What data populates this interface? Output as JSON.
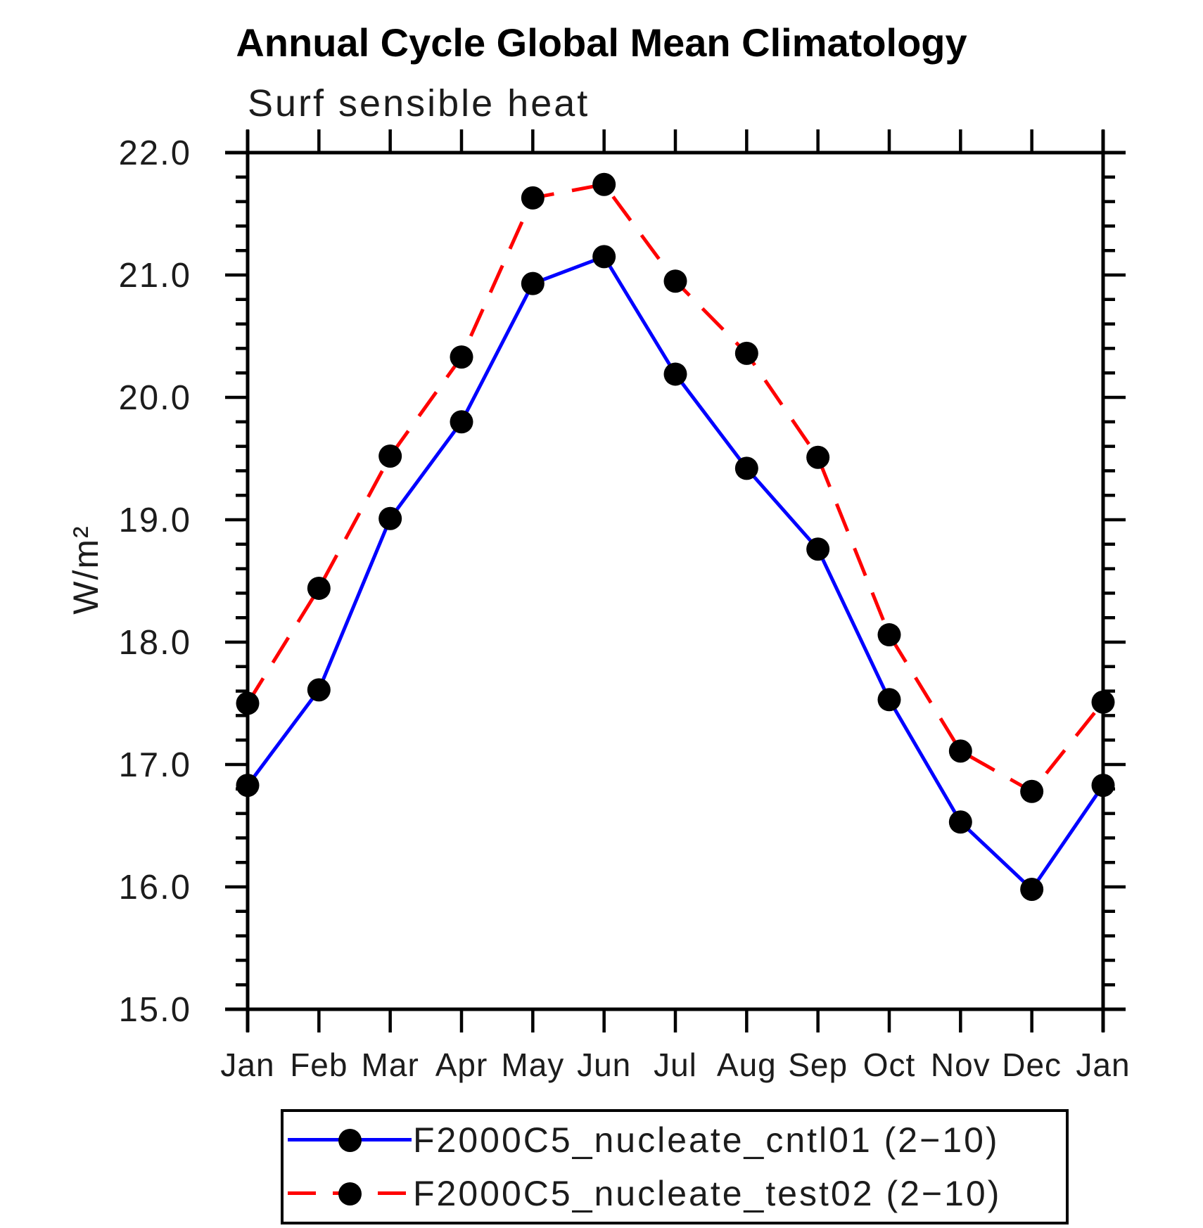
{
  "chart_data": {
    "type": "line",
    "title": "Annual Cycle Global Mean Climatology",
    "subtitle": "Surf sensible heat",
    "ylabel": "W/m²",
    "x_tick_labels": [
      "Jan",
      "Feb",
      "Mar",
      "Apr",
      "May",
      "Jun",
      "Jul",
      "Aug",
      "Sep",
      "Oct",
      "Nov",
      "Dec",
      "Jan"
    ],
    "y_tick_labels": [
      "15.0",
      "16.0",
      "17.0",
      "18.0",
      "19.0",
      "20.0",
      "21.0",
      "22.0"
    ],
    "ylim": [
      15.0,
      22.0
    ],
    "y_major_step": 1.0,
    "y_minor_step": 0.2,
    "grid": false,
    "tick_style": "outward",
    "legend_position": "bottom-center",
    "axis_color": "#000000",
    "marker_color": "#000000",
    "series": [
      {
        "name": "F2000C5_nucleate_cntl01 (2−10)",
        "color": "#0000ff",
        "style": "solid",
        "marker": "filled-circle",
        "values": [
          16.83,
          17.61,
          19.01,
          19.8,
          20.93,
          21.15,
          20.19,
          19.42,
          18.76,
          17.53,
          16.53,
          15.98,
          16.83
        ]
      },
      {
        "name": "F2000C5_nucleate_test02 (2−10)",
        "color": "#ff0000",
        "style": "dashed",
        "marker": "filled-circle",
        "values": [
          17.5,
          18.44,
          19.52,
          20.33,
          21.63,
          21.74,
          20.95,
          20.36,
          19.51,
          18.06,
          17.11,
          16.78,
          17.51
        ]
      }
    ]
  }
}
